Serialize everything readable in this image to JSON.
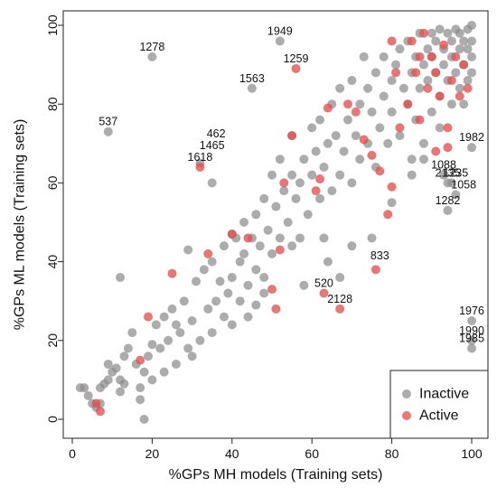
{
  "chart_data": {
    "type": "scatter",
    "title": "",
    "xlabel": "%GPs MH models (Training sets)",
    "ylabel": "%GPs ML models (Training sets)",
    "xlim": [
      0,
      100
    ],
    "ylim": [
      0,
      100
    ],
    "xticks": [
      "0",
      "20",
      "40",
      "60",
      "80",
      "100"
    ],
    "yticks": [
      "0",
      "20",
      "40",
      "60",
      "80",
      "100"
    ],
    "grid": false,
    "legend_position": "bottom-right",
    "series": [
      {
        "name": "Inactive",
        "color": "#8c8c8c",
        "points": [
          [
            2,
            8
          ],
          [
            3,
            8
          ],
          [
            4,
            6
          ],
          [
            5,
            4
          ],
          [
            6,
            3
          ],
          [
            7,
            8
          ],
          [
            8,
            9
          ],
          [
            9,
            10
          ],
          [
            9,
            14
          ],
          [
            10,
            12
          ],
          [
            11,
            13
          ],
          [
            12,
            10
          ],
          [
            12,
            7
          ],
          [
            13,
            9
          ],
          [
            13,
            16
          ],
          [
            14,
            18
          ],
          [
            15,
            22
          ],
          [
            16,
            14
          ],
          [
            17,
            8
          ],
          [
            17,
            5
          ],
          [
            18,
            0
          ],
          [
            18,
            12
          ],
          [
            19,
            16
          ],
          [
            20,
            19
          ],
          [
            20,
            10
          ],
          [
            21,
            24
          ],
          [
            22,
            18
          ],
          [
            23,
            12
          ],
          [
            23,
            26
          ],
          [
            24,
            20
          ],
          [
            25,
            28
          ],
          [
            26,
            14
          ],
          [
            26,
            24
          ],
          [
            27,
            22
          ],
          [
            28,
            30
          ],
          [
            29,
            18
          ],
          [
            30,
            25
          ],
          [
            30,
            16
          ],
          [
            31,
            35
          ],
          [
            32,
            20
          ],
          [
            33,
            38
          ],
          [
            34,
            28
          ],
          [
            35,
            40
          ],
          [
            35,
            22
          ],
          [
            36,
            30
          ],
          [
            37,
            35
          ],
          [
            38,
            26
          ],
          [
            38,
            44
          ],
          [
            39,
            32
          ],
          [
            40,
            24
          ],
          [
            40,
            36
          ],
          [
            41,
            46
          ],
          [
            42,
            30
          ],
          [
            42,
            40
          ],
          [
            43,
            42
          ],
          [
            44,
            34
          ],
          [
            44,
            26
          ],
          [
            45,
            46
          ],
          [
            46,
            38
          ],
          [
            46,
            52
          ],
          [
            47,
            44
          ],
          [
            48,
            36
          ],
          [
            48,
            56
          ],
          [
            49,
            48
          ],
          [
            50,
            42
          ],
          [
            50,
            62
          ],
          [
            51,
            54
          ],
          [
            52,
            46
          ],
          [
            52,
            66
          ],
          [
            53,
            58
          ],
          [
            54,
            50
          ],
          [
            55,
            62
          ],
          [
            55,
            72
          ],
          [
            56,
            56
          ],
          [
            57,
            60
          ],
          [
            57,
            46
          ],
          [
            58,
            66
          ],
          [
            59,
            52
          ],
          [
            60,
            62
          ],
          [
            60,
            74
          ],
          [
            61,
            68
          ],
          [
            62,
            56
          ],
          [
            62,
            76
          ],
          [
            63,
            64
          ],
          [
            63,
            46
          ],
          [
            64,
            70
          ],
          [
            65,
            58
          ],
          [
            65,
            80
          ],
          [
            66,
            72
          ],
          [
            67,
            62
          ],
          [
            67,
            84
          ],
          [
            68,
            68
          ],
          [
            69,
            76
          ],
          [
            70,
            60
          ],
          [
            70,
            86
          ],
          [
            71,
            72
          ],
          [
            72,
            66
          ],
          [
            72,
            80
          ],
          [
            73,
            92
          ],
          [
            74,
            70
          ],
          [
            74,
            84
          ],
          [
            75,
            78
          ],
          [
            76,
            88
          ],
          [
            76,
            64
          ],
          [
            77,
            74
          ],
          [
            78,
            82
          ],
          [
            78,
            92
          ],
          [
            79,
            70
          ],
          [
            80,
            86
          ],
          [
            80,
            78
          ],
          [
            81,
            90
          ],
          [
            82,
            94
          ],
          [
            82,
            72
          ],
          [
            83,
            84
          ],
          [
            84,
            96
          ],
          [
            84,
            80
          ],
          [
            85,
            88
          ],
          [
            85,
            66
          ],
          [
            86,
            92
          ],
          [
            86,
            76
          ],
          [
            87,
            98
          ],
          [
            87,
            84
          ],
          [
            88,
            90
          ],
          [
            88,
            70
          ],
          [
            89,
            94
          ],
          [
            89,
            86
          ],
          [
            90,
            98
          ],
          [
            90,
            78
          ],
          [
            90,
            92
          ],
          [
            91,
            88
          ],
          [
            91,
            96
          ],
          [
            92,
            82
          ],
          [
            92,
            99
          ],
          [
            92,
            74
          ],
          [
            93,
            94
          ],
          [
            93,
            90
          ],
          [
            94,
            98
          ],
          [
            94,
            86
          ],
          [
            95,
            96
          ],
          [
            95,
            80
          ],
          [
            95,
            92
          ],
          [
            96,
            99
          ],
          [
            96,
            88
          ],
          [
            97,
            94
          ],
          [
            97,
            84
          ],
          [
            97,
            98
          ],
          [
            98,
            90
          ],
          [
            98,
            96
          ],
          [
            98,
            80
          ],
          [
            99,
            99
          ],
          [
            99,
            86
          ],
          [
            99,
            94
          ],
          [
            100,
            100
          ],
          [
            100,
            92
          ],
          [
            100,
            88
          ],
          [
            100,
            96
          ],
          [
            93,
            62
          ],
          [
            94,
            60
          ],
          [
            95,
            60
          ],
          [
            96,
            57
          ],
          [
            94,
            53
          ],
          [
            100,
            69
          ],
          [
            100,
            25
          ],
          [
            100,
            20
          ],
          [
            100,
            18
          ],
          [
            20,
            92
          ],
          [
            45,
            84
          ],
          [
            52,
            96
          ],
          [
            9,
            73
          ],
          [
            32,
            65
          ],
          [
            35,
            60
          ],
          [
            40,
            47
          ],
          [
            43,
            50
          ],
          [
            55,
            44
          ],
          [
            64,
            40
          ],
          [
            70,
            44
          ],
          [
            48,
            32
          ],
          [
            58,
            34
          ],
          [
            75,
            46
          ],
          [
            85,
            62
          ],
          [
            88,
            66
          ],
          [
            80,
            55
          ],
          [
            7,
            4
          ],
          [
            12,
            36
          ],
          [
            29,
            43
          ],
          [
            46,
            29
          ],
          [
            67,
            36
          ]
        ]
      },
      {
        "name": "Active",
        "color": "#e05050",
        "points": [
          [
            6,
            4
          ],
          [
            7,
            2
          ],
          [
            17,
            15
          ],
          [
            19,
            26
          ],
          [
            25,
            37
          ],
          [
            32,
            64
          ],
          [
            34,
            42
          ],
          [
            40,
            47
          ],
          [
            44,
            46
          ],
          [
            50,
            33
          ],
          [
            51,
            28
          ],
          [
            52,
            43
          ],
          [
            53,
            60
          ],
          [
            55,
            72
          ],
          [
            56,
            89
          ],
          [
            61,
            58
          ],
          [
            62,
            61
          ],
          [
            63,
            32
          ],
          [
            64,
            79
          ],
          [
            67,
            28
          ],
          [
            69,
            80
          ],
          [
            71,
            78
          ],
          [
            73,
            71
          ],
          [
            75,
            67
          ],
          [
            76,
            38
          ],
          [
            77,
            63
          ],
          [
            79,
            52
          ],
          [
            80,
            59
          ],
          [
            81,
            88
          ],
          [
            82,
            74
          ],
          [
            84,
            80
          ],
          [
            86,
            88
          ],
          [
            87,
            76
          ],
          [
            88,
            98
          ],
          [
            89,
            84
          ],
          [
            90,
            92
          ],
          [
            91,
            88
          ],
          [
            92,
            82
          ],
          [
            93,
            95
          ],
          [
            94,
            74
          ],
          [
            94,
            69
          ],
          [
            95,
            86
          ],
          [
            96,
            92
          ],
          [
            97,
            82
          ],
          [
            98,
            90
          ],
          [
            99,
            84
          ],
          [
            91,
            68
          ],
          [
            85,
            96
          ],
          [
            87,
            92
          ],
          [
            80,
            96
          ]
        ]
      }
    ],
    "annotations": [
      {
        "text": "1278",
        "x": 20,
        "y": 92
      },
      {
        "text": "1949",
        "x": 52,
        "y": 96
      },
      {
        "text": "1259",
        "x": 56,
        "y": 89
      },
      {
        "text": "1563",
        "x": 45,
        "y": 84
      },
      {
        "text": "537",
        "x": 9,
        "y": 73
      },
      {
        "text": "462",
        "x": 36,
        "y": 70
      },
      {
        "text": "1465",
        "x": 35,
        "y": 67
      },
      {
        "text": "1618",
        "x": 32,
        "y": 64
      },
      {
        "text": "1982",
        "x": 100,
        "y": 69
      },
      {
        "text": "1088",
        "x": 93,
        "y": 62
      },
      {
        "text": "2135",
        "x": 94,
        "y": 60
      },
      {
        "text": "1235",
        "x": 96,
        "y": 60
      },
      {
        "text": "1058",
        "x": 98,
        "y": 57
      },
      {
        "text": "1282",
        "x": 94,
        "y": 53
      },
      {
        "text": "833",
        "x": 77,
        "y": 39
      },
      {
        "text": "520",
        "x": 63,
        "y": 32
      },
      {
        "text": "2128",
        "x": 67,
        "y": 28
      },
      {
        "text": "1976",
        "x": 100,
        "y": 25
      },
      {
        "text": "1990",
        "x": 100,
        "y": 20
      },
      {
        "text": "1985",
        "x": 100,
        "y": 18
      }
    ]
  }
}
